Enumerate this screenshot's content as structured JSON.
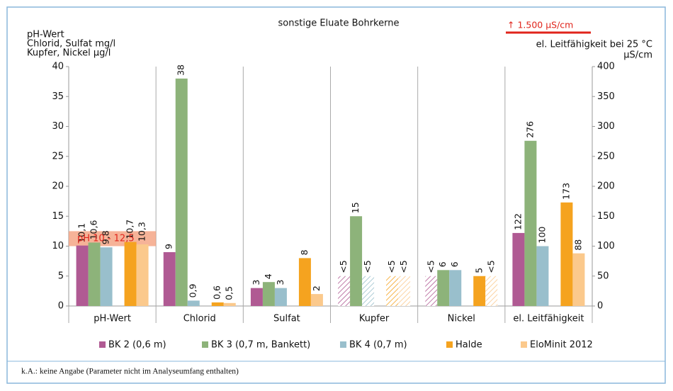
{
  "chart_data": {
    "type": "bar",
    "title": "sonstige Eluate Bohrkerne",
    "y_axis_label": [
      "pH-Wert",
      "Chlorid, Sulfat  mg/l",
      "Kupfer, Nickel  µg/l"
    ],
    "y2_axis_label": [
      "el. Leitfähigkeit bei 25 °C",
      "µS/cm"
    ],
    "limit_note": "↑ 1.500 µS/cm",
    "categories": [
      "pH-Wert",
      "Chlorid",
      "Sulfat",
      "Kupfer",
      "Nickel",
      "el. Leitfähigkeit"
    ],
    "category_axes": [
      "y",
      "y",
      "y",
      "y",
      "y",
      "y2"
    ],
    "series": [
      {
        "name": "BK 2 (0,6 m)",
        "color": "#b05a93",
        "values": [
          10.1,
          9,
          3,
          5,
          5,
          122
        ],
        "value_labels": [
          "10,1",
          "9",
          "3",
          "<5",
          "<5",
          "122"
        ],
        "censored": [
          false,
          false,
          false,
          true,
          true,
          false
        ]
      },
      {
        "name": "BK 3 (0,7 m, Bankett)",
        "color": "#8db37a",
        "values": [
          10.6,
          38,
          4,
          15,
          6,
          276
        ],
        "value_labels": [
          "10,6",
          "38",
          "4",
          "15",
          "6",
          "276"
        ],
        "censored": [
          false,
          false,
          false,
          false,
          false,
          false
        ]
      },
      {
        "name": "BK 4 (0,7 m)",
        "color": "#99bfcc",
        "values": [
          9.8,
          0.9,
          3,
          5,
          6,
          100
        ],
        "value_labels": [
          "9,8",
          "0,9",
          "3",
          "<5",
          "6",
          "100"
        ],
        "censored": [
          false,
          false,
          false,
          true,
          false,
          false
        ]
      },
      {
        "name": "Halde",
        "color": "#f5a31f",
        "values": [
          10.7,
          0.6,
          8,
          5,
          5,
          173
        ],
        "value_labels": [
          "10,7",
          "0,6",
          "8",
          "<5",
          "5",
          "173"
        ],
        "censored": [
          false,
          false,
          false,
          true,
          false,
          false
        ]
      },
      {
        "name": "EloMinit 2012",
        "color": "#fbc98c",
        "values": [
          10.3,
          0.5,
          2,
          5,
          5,
          88
        ],
        "value_labels": [
          "10,3",
          "0,5",
          "2",
          "<5",
          "<5",
          "88"
        ],
        "censored": [
          false,
          false,
          false,
          true,
          true,
          false
        ]
      }
    ],
    "ylim": [
      0,
      40
    ],
    "yticks": [
      0,
      5,
      10,
      15,
      20,
      25,
      30,
      35,
      40
    ],
    "y2lim": [
      0,
      400
    ],
    "y2ticks": [
      0,
      50,
      100,
      150,
      200,
      250,
      300,
      350,
      400
    ],
    "annotation": {
      "text": "pH 10 - 12,5",
      "band": [
        10,
        12.5
      ],
      "color": "#f4a07e"
    },
    "footnote": "k.A.:  keine Angabe (Parameter nicht im Analyseumfang enthalten)"
  }
}
